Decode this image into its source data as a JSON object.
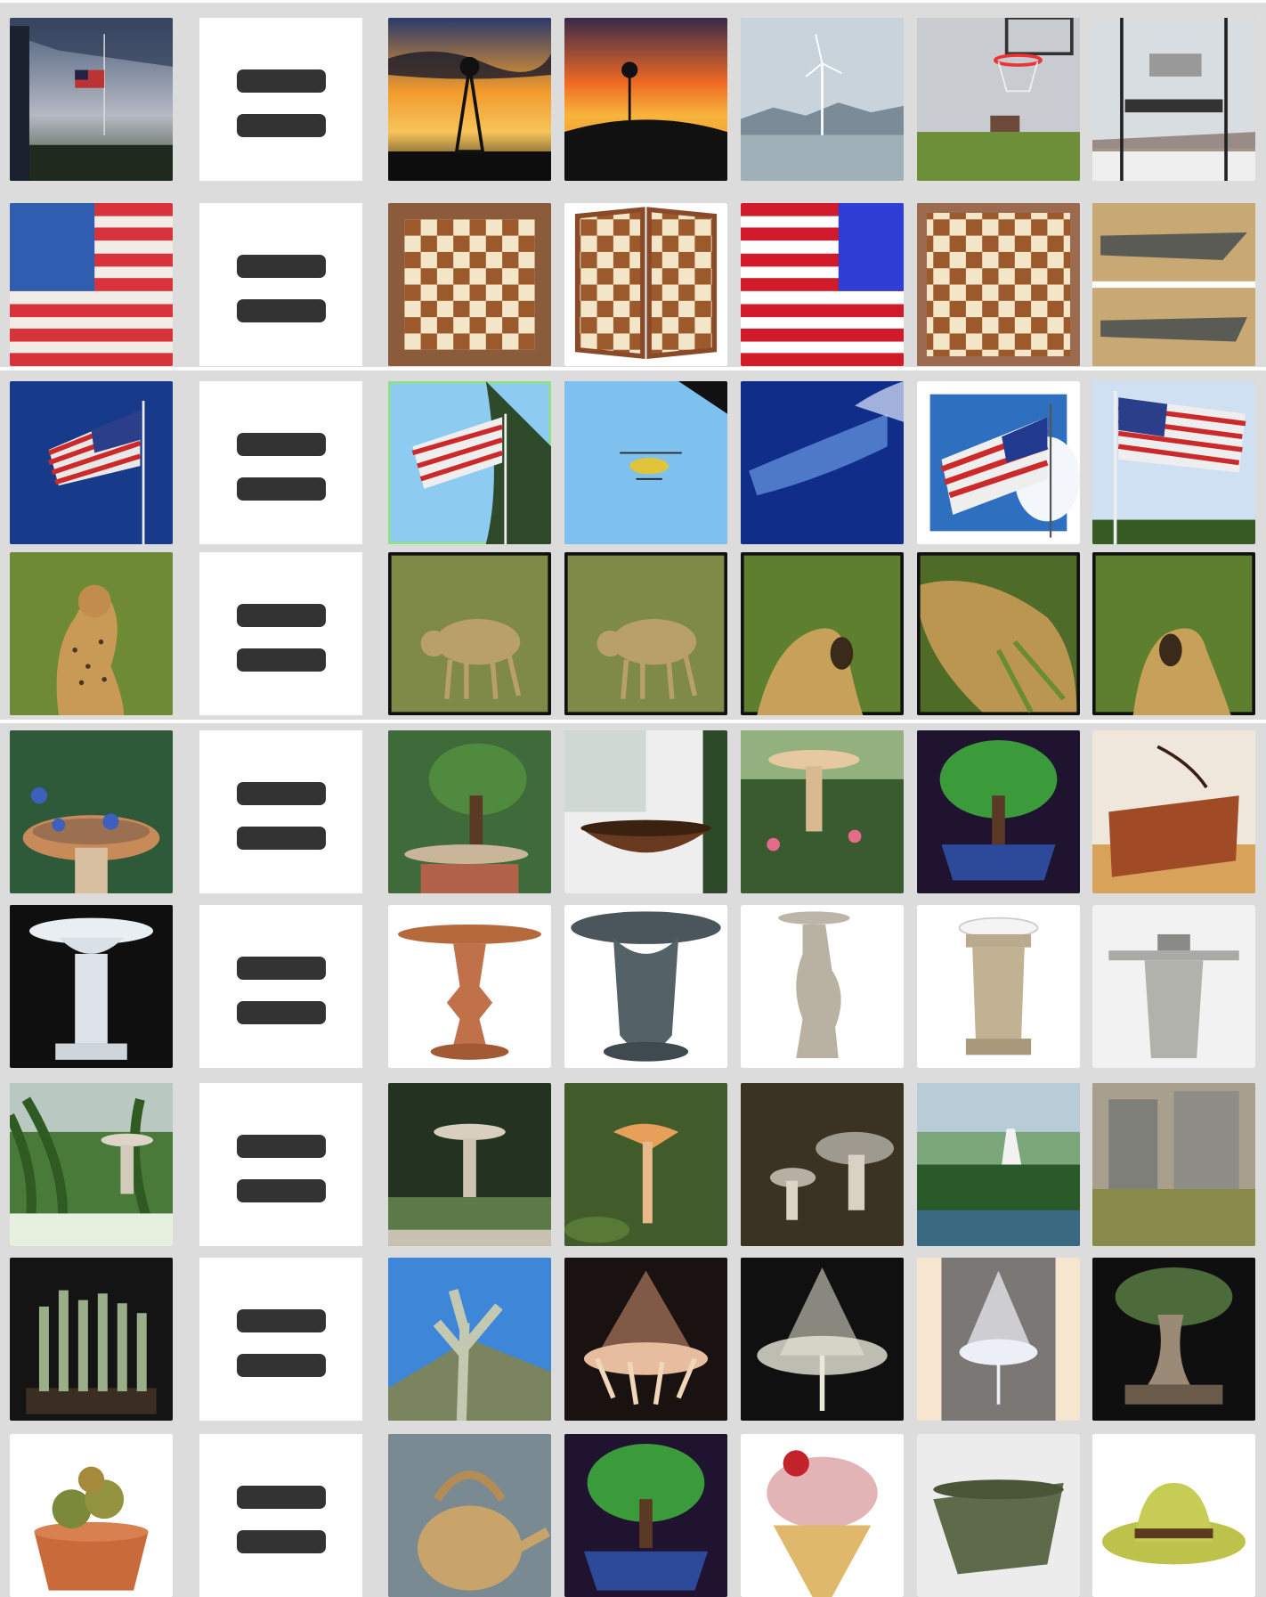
{
  "layout": {
    "columns": 7,
    "rows": 9,
    "equals_icon": "equals-sign-icon"
  },
  "rows": [
    {
      "id": "row-1",
      "query": "flag-at-dusk",
      "results": [
        "windmill-sunset-1",
        "windmill-sunset-2",
        "wind-turbine-lake",
        "basketball-hoop-field",
        "gun-sign-snow"
      ]
    },
    {
      "id": "row-2",
      "query": "us-flag-painting",
      "results": [
        "chessboard-1",
        "chessboard-folding",
        "us-flag-flat",
        "chessboard-2",
        "rusty-blade"
      ]
    },
    {
      "id": "row-3",
      "query": "flag-blue-sky",
      "results": [
        "flag-on-pole-trees",
        "helicopter-sky",
        "whale-underwater",
        "flag-waving-clouds",
        "flag-on-pole"
      ]
    },
    {
      "id": "row-4",
      "query": "cheetah-grass",
      "results": [
        "cheetah-walking-1",
        "cheetah-walking-2",
        "cheetah-roaring-1",
        "cheetah-crouching",
        "cheetah-roaring-2"
      ]
    },
    {
      "id": "row-5",
      "query": "birdbath-bluebirds",
      "results": [
        "bonsai-pine",
        "wooden-bathtub",
        "garden-birdbath",
        "green-bonsai",
        "copper-tub"
      ]
    },
    {
      "id": "row-6",
      "query": "white-birdbath",
      "results": [
        "copper-birdbath",
        "grey-birdbath",
        "cherub-birdbath",
        "statue-birdbath",
        "stone-birdbath"
      ]
    },
    {
      "id": "row-7",
      "query": "birdbath-garden",
      "results": [
        "garden-fountain",
        "mushroom-1",
        "mushrooms-2",
        "unicorn-lake",
        "industrial-silos"
      ]
    },
    {
      "id": "row-8",
      "query": "cactus-pot-dark",
      "results": [
        "cholla-cactus",
        "chandelier-1",
        "chandelier-2",
        "chandelier-3",
        "bonsai-dark"
      ]
    },
    {
      "id": "row-9",
      "query": "cactus-pot-white",
      "results": [
        "ceramic-teapot",
        "bonsai-pot",
        "ice-cream-rose",
        "green-planter",
        "straw-hat"
      ]
    }
  ]
}
